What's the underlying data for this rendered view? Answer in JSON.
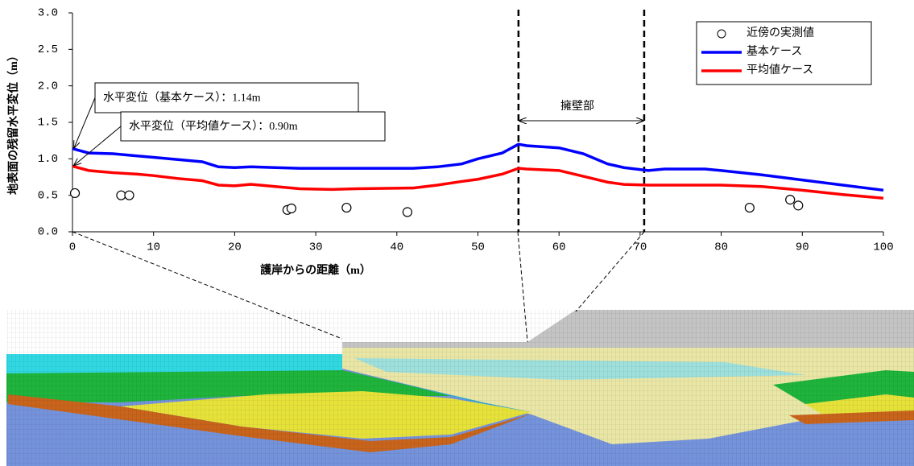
{
  "chart_data": {
    "type": "line",
    "xlabel": "護岸からの距離（m）",
    "ylabel": "地表面の残留水平変位（m）",
    "xlim": [
      0,
      100
    ],
    "ylim": [
      0,
      3.0
    ],
    "xticks": [
      0,
      10,
      20,
      30,
      40,
      50,
      60,
      70,
      80,
      90,
      100
    ],
    "yticks": [
      {
        "value": 0,
        "label": "0.0"
      },
      0.5,
      {
        "value": 1,
        "label": "1.0"
      },
      1.5,
      {
        "value": 2,
        "label": "2.0"
      },
      2.5,
      {
        "value": 3,
        "label": "3.0"
      }
    ],
    "legend": "upper right",
    "series": [
      {
        "name": "近傍の実測値",
        "type": "scatter",
        "color": "#000000",
        "x": [
          0.3,
          6,
          7,
          26.5,
          27,
          33.8,
          41.3,
          83.5,
          88.5,
          89.5
        ],
        "values": [
          0.53,
          0.5,
          0.5,
          0.3,
          0.32,
          0.33,
          0.27,
          0.33,
          0.44,
          0.36
        ]
      },
      {
        "name": "基本ケース",
        "type": "line",
        "color": "#0000ff",
        "x": [
          0,
          2,
          5,
          8,
          10,
          13,
          16,
          18,
          20,
          22,
          25,
          28,
          35,
          42,
          45,
          48,
          50,
          53,
          55,
          56,
          60,
          63,
          66,
          68,
          71,
          73,
          78,
          80,
          85,
          90,
          95,
          100
        ],
        "values": [
          1.14,
          1.08,
          1.07,
          1.04,
          1.02,
          0.99,
          0.96,
          0.89,
          0.88,
          0.89,
          0.88,
          0.87,
          0.87,
          0.87,
          0.89,
          0.93,
          1.0,
          1.08,
          1.2,
          1.18,
          1.15,
          1.07,
          0.93,
          0.88,
          0.84,
          0.86,
          0.86,
          0.84,
          0.78,
          0.71,
          0.64,
          0.57
        ]
      },
      {
        "name": "平均値ケース",
        "type": "line",
        "color": "#ff0000",
        "x": [
          0,
          2,
          5,
          8,
          10,
          13,
          16,
          18,
          20,
          22,
          25,
          28,
          32,
          35,
          42,
          45,
          48,
          50,
          53,
          55,
          56,
          60,
          63,
          66,
          68,
          71,
          80,
          85,
          90,
          95,
          100
        ],
        "values": [
          0.9,
          0.84,
          0.81,
          0.79,
          0.77,
          0.73,
          0.7,
          0.64,
          0.63,
          0.65,
          0.62,
          0.59,
          0.58,
          0.59,
          0.6,
          0.64,
          0.69,
          0.72,
          0.79,
          0.87,
          0.86,
          0.84,
          0.76,
          0.68,
          0.65,
          0.64,
          0.64,
          0.62,
          0.57,
          0.51,
          0.46
        ]
      }
    ],
    "vlines": [
      55,
      70.5
    ],
    "region_label": "擁壁部",
    "annotations": [
      {
        "text": "水平変位（基本ケース）：1.14m",
        "x": 0,
        "y": 1.14
      },
      {
        "text": "水平変位（平均値ケース）：0.90m",
        "x": 0,
        "y": 0.9
      }
    ]
  }
}
